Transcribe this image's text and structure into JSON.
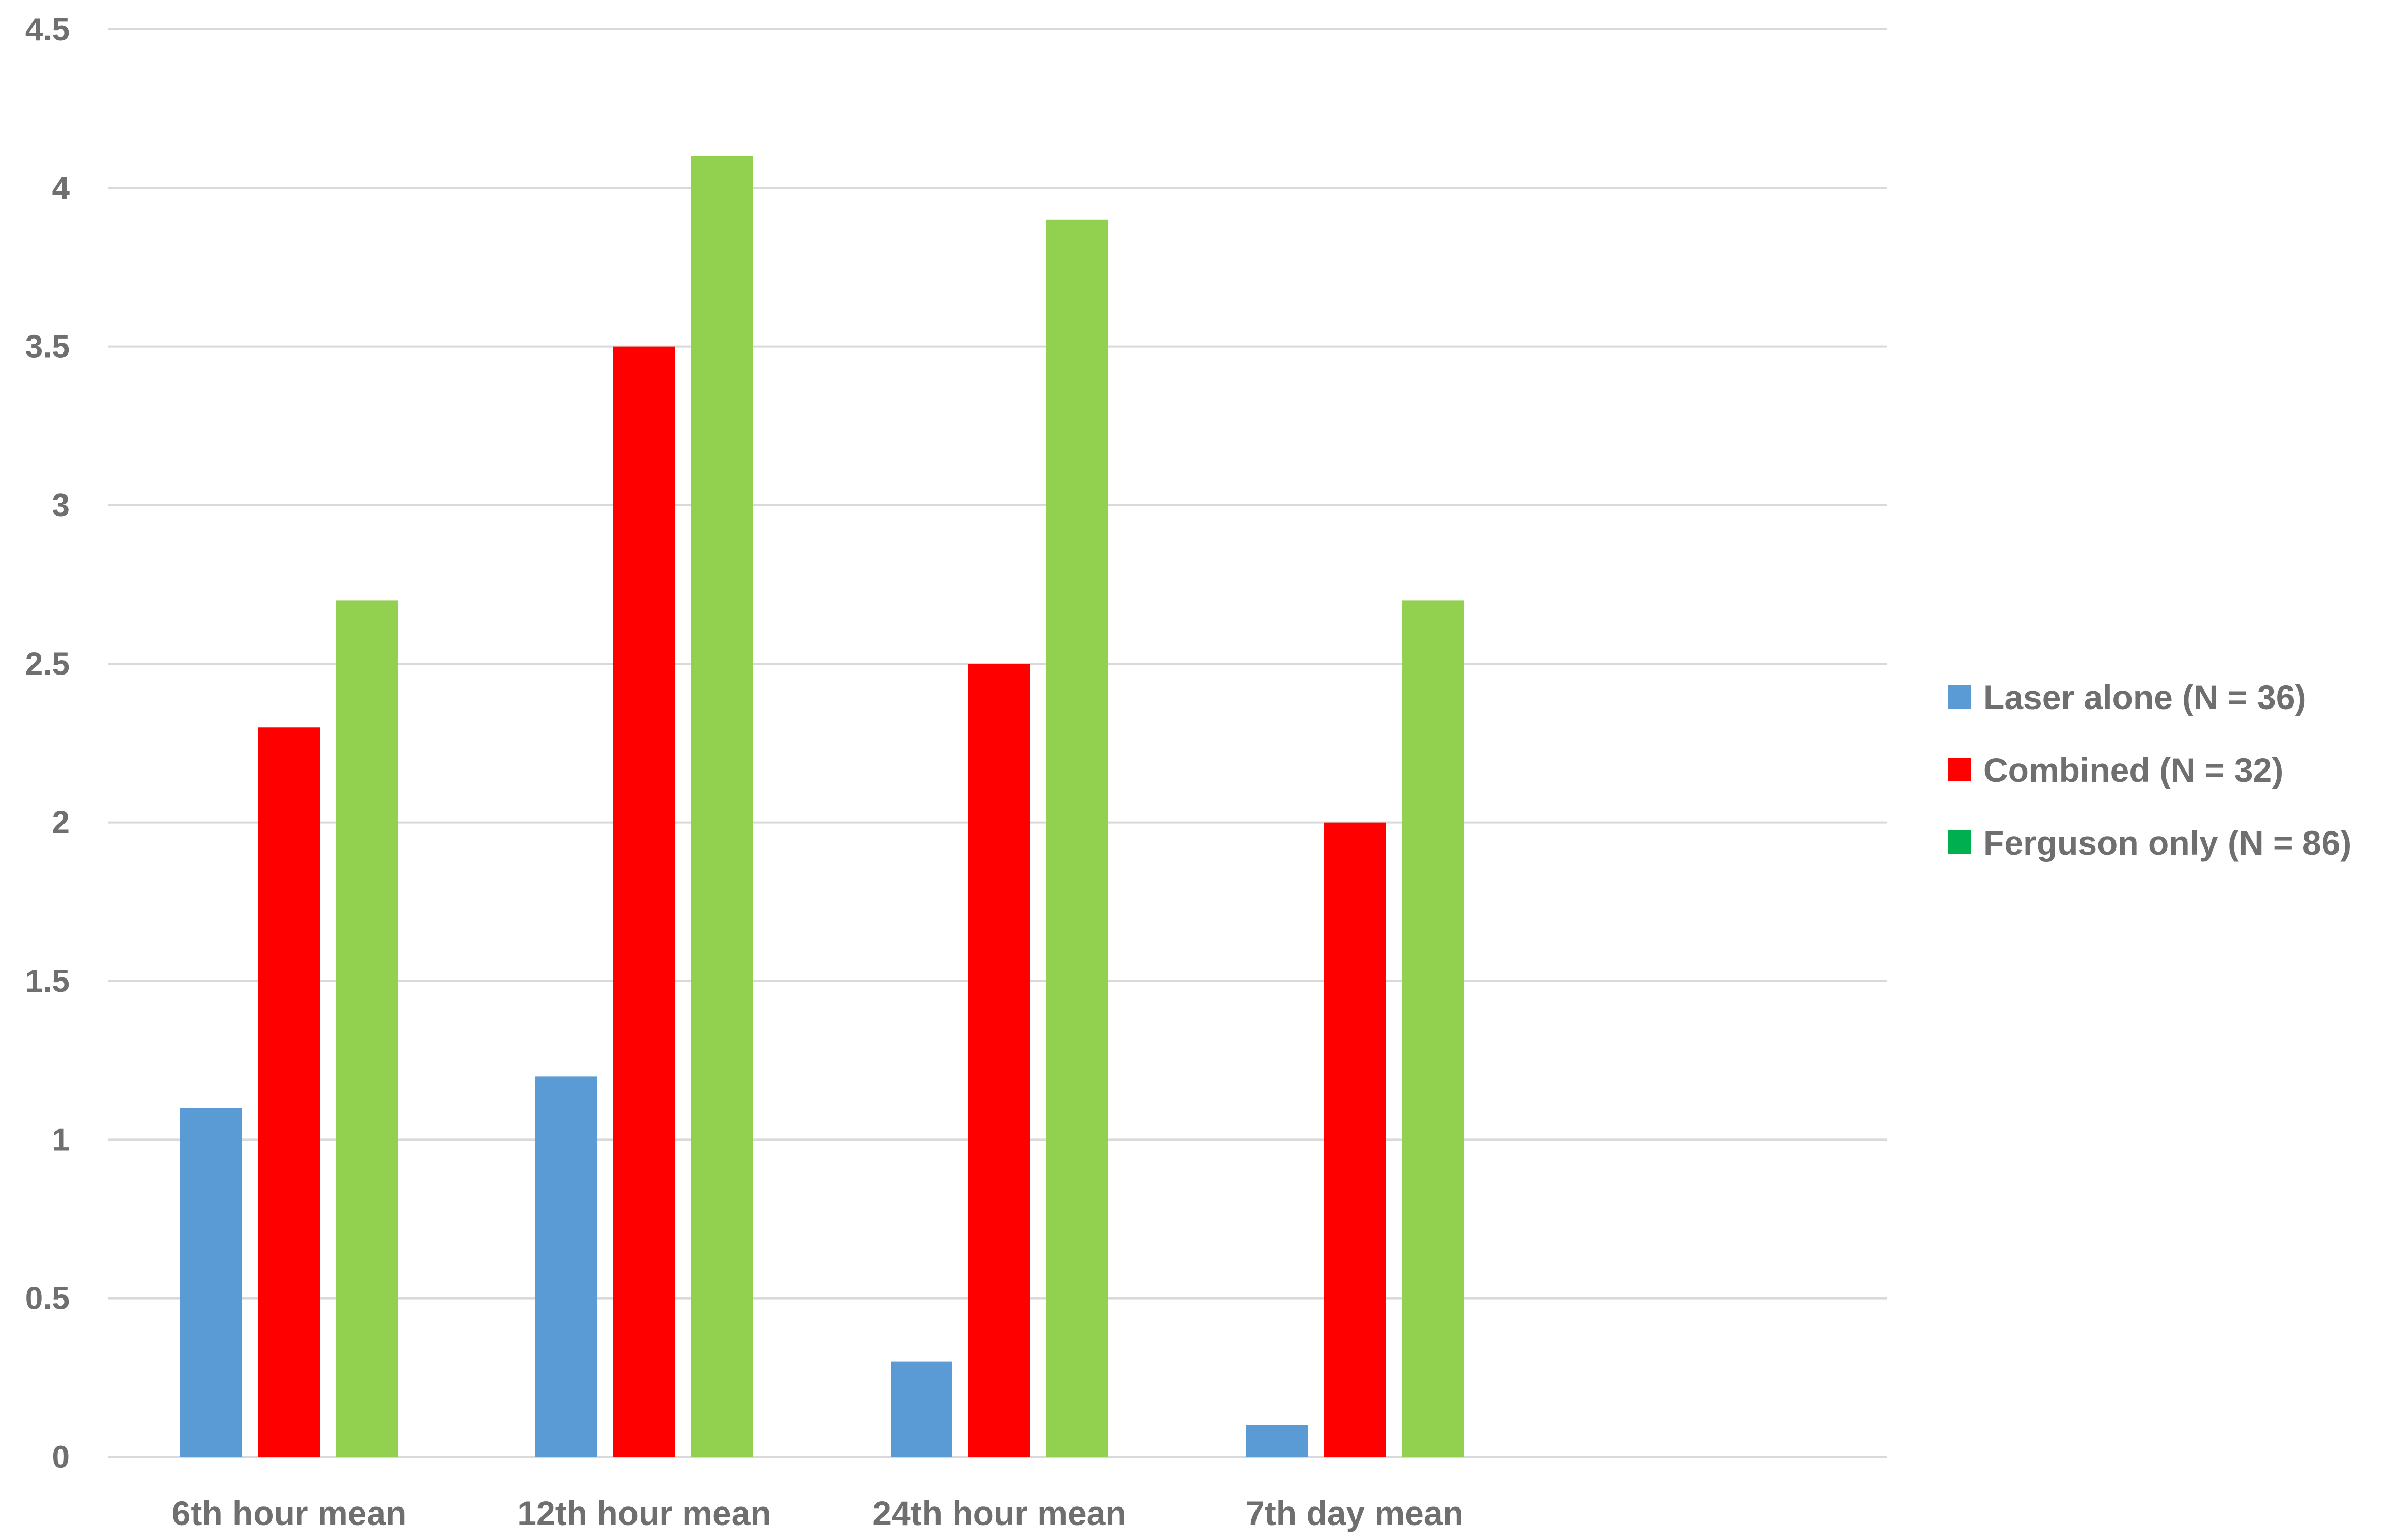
{
  "chart_data": {
    "type": "bar",
    "title": "",
    "xlabel": "",
    "ylabel": "",
    "categories": [
      "6th hour mean",
      "12th hour mean",
      "24th hour mean",
      "7th day mean"
    ],
    "series": [
      {
        "name": "Laser alone (N = 36)",
        "color": "#5b9bd5",
        "legend_color": "#5b9bd5",
        "values": [
          1.1,
          1.2,
          0.3,
          0.1
        ]
      },
      {
        "name": "Combined (N = 32)",
        "color": "#ff0000",
        "legend_color": "#ff0000",
        "values": [
          2.3,
          3.5,
          2.5,
          2.0
        ]
      },
      {
        "name": "Ferguson only (N = 86)",
        "color": "#92d050",
        "legend_color": "#00b050",
        "values": [
          2.7,
          4.1,
          3.9,
          2.7
        ]
      }
    ],
    "y_ticks": [
      "0",
      "0.5",
      "1",
      "1.5",
      "2",
      "2.5",
      "3",
      "3.5",
      "4",
      "4.5"
    ],
    "y_tick_values": [
      0,
      0.5,
      1,
      1.5,
      2,
      2.5,
      3,
      3.5,
      4,
      4.5
    ],
    "ylim": [
      0,
      4.5
    ],
    "grid": true,
    "legend_position": "right",
    "colors": {
      "grid": "#d9d9d9",
      "text": "#6f6f6f"
    }
  }
}
